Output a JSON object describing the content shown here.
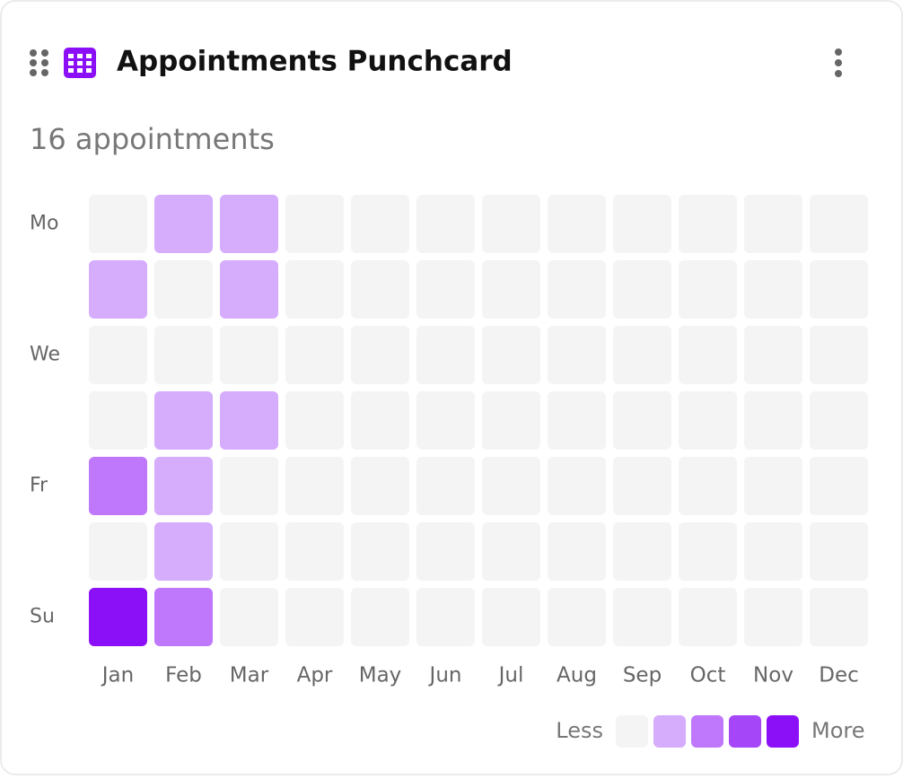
{
  "chart_data": {
    "type": "heatmap",
    "title": "Appointments Punchcard",
    "subtitle": "16 appointments",
    "rows": [
      "Mo",
      null,
      "We",
      null,
      "Fr",
      null,
      "Su"
    ],
    "columns": [
      "Jan",
      "Feb",
      "Mar",
      "Apr",
      "May",
      "Jun",
      "Jul",
      "Aug",
      "Sep",
      "Oct",
      "Nov",
      "Dec"
    ],
    "values": [
      [
        0,
        1,
        1,
        0,
        0,
        0,
        0,
        0,
        0,
        0,
        0,
        0
      ],
      [
        1,
        0,
        1,
        0,
        0,
        0,
        0,
        0,
        0,
        0,
        0,
        0
      ],
      [
        0,
        0,
        0,
        0,
        0,
        0,
        0,
        0,
        0,
        0,
        0,
        0
      ],
      [
        0,
        1,
        1,
        0,
        0,
        0,
        0,
        0,
        0,
        0,
        0,
        0
      ],
      [
        2,
        1,
        0,
        0,
        0,
        0,
        0,
        0,
        0,
        0,
        0,
        0
      ],
      [
        0,
        1,
        0,
        0,
        0,
        0,
        0,
        0,
        0,
        0,
        0,
        0
      ],
      [
        4,
        2,
        0,
        0,
        0,
        0,
        0,
        0,
        0,
        0,
        0,
        0
      ]
    ],
    "colors": [
      "#f4f4f4",
      "#d6acfd",
      "#bf77fb",
      "#a546f8",
      "#8c10f7"
    ],
    "legend_low": "Less",
    "legend_high": "More"
  }
}
